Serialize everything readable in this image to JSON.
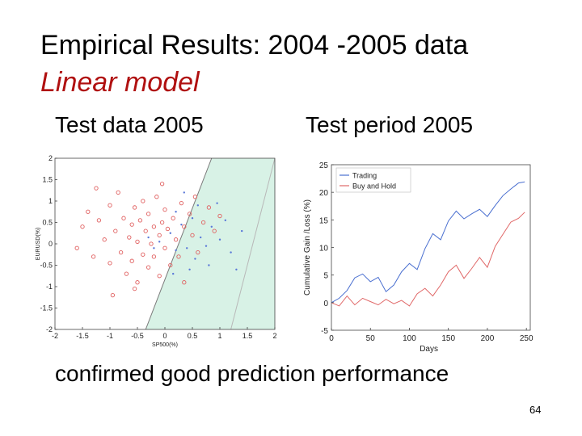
{
  "slide": {
    "title": "Empirical Results: 2004 -2005 data",
    "subtitle": "Linear model",
    "subtitle_color": "#b01010",
    "left_label": "Test data 2005",
    "right_label": "Test period 2005",
    "caption": "confirmed good prediction performance",
    "page_number": "64"
  },
  "chart_data": [
    {
      "type": "scatter",
      "title": "",
      "xlabel": "SP500(%)",
      "ylabel": "EURUSD(%)",
      "xlim": [
        -2,
        2
      ],
      "ylim": [
        -2,
        2
      ],
      "xticks": [
        -2,
        -1.5,
        -1,
        -0.5,
        0,
        0.5,
        1,
        1.5,
        2
      ],
      "yticks": [
        -2,
        -1.5,
        -1,
        -0.5,
        0,
        0.5,
        1,
        1.5,
        2
      ],
      "region_color": "#d8f2e6",
      "region_polygon": [
        [
          -0.35,
          -2
        ],
        [
          0.85,
          2
        ],
        [
          2,
          2
        ],
        [
          2,
          -2
        ]
      ],
      "boundary_lines": [
        {
          "points": [
            [
              -0.35,
              -2
            ],
            [
              0.85,
              2
            ]
          ],
          "color": "#7a7a7a"
        },
        {
          "points": [
            [
              1.2,
              -2
            ],
            [
              2,
              2
            ]
          ],
          "color": "#b8b8b8"
        }
      ],
      "series": [
        {
          "color": "#e06060",
          "marker": "circle",
          "points": [
            [
              -1.5,
              0.4
            ],
            [
              -1.4,
              0.75
            ],
            [
              -1.3,
              -0.3
            ],
            [
              -1.2,
              0.55
            ],
            [
              -1.1,
              0.1
            ],
            [
              -1.0,
              0.9
            ],
            [
              -1.0,
              -0.45
            ],
            [
              -0.9,
              0.3
            ],
            [
              -0.85,
              1.2
            ],
            [
              -0.8,
              -0.2
            ],
            [
              -0.75,
              0.6
            ],
            [
              -0.7,
              -0.7
            ],
            [
              -0.65,
              0.15
            ],
            [
              -0.6,
              0.45
            ],
            [
              -0.6,
              -0.4
            ],
            [
              -0.55,
              0.85
            ],
            [
              -0.5,
              0.05
            ],
            [
              -0.5,
              -0.9
            ],
            [
              -0.45,
              0.55
            ],
            [
              -0.4,
              -0.25
            ],
            [
              -0.4,
              1.0
            ],
            [
              -0.35,
              0.3
            ],
            [
              -0.3,
              -0.55
            ],
            [
              -0.3,
              0.7
            ],
            [
              -0.25,
              0.0
            ],
            [
              -0.2,
              0.4
            ],
            [
              -0.2,
              -0.3
            ],
            [
              -0.15,
              1.1
            ],
            [
              -0.1,
              0.2
            ],
            [
              -0.1,
              -0.75
            ],
            [
              -0.05,
              0.5
            ],
            [
              0.0,
              -0.1
            ],
            [
              0.0,
              0.8
            ],
            [
              0.05,
              0.35
            ],
            [
              0.1,
              -0.5
            ],
            [
              0.15,
              0.6
            ],
            [
              0.2,
              0.1
            ],
            [
              0.25,
              -0.3
            ],
            [
              0.3,
              0.95
            ],
            [
              0.35,
              0.4
            ],
            [
              0.45,
              0.7
            ],
            [
              0.5,
              0.2
            ],
            [
              0.55,
              1.1
            ],
            [
              0.6,
              -0.2
            ],
            [
              0.7,
              0.5
            ],
            [
              0.8,
              0.85
            ],
            [
              0.9,
              0.3
            ],
            [
              -1.25,
              1.3
            ],
            [
              -0.95,
              -1.2
            ],
            [
              -0.55,
              -1.05
            ],
            [
              0.35,
              -0.9
            ],
            [
              1.0,
              0.65
            ],
            [
              -1.6,
              -0.1
            ],
            [
              -0.05,
              1.4
            ]
          ]
        },
        {
          "color": "#5a78d8",
          "marker": "dot",
          "points": [
            [
              0.1,
              0.25
            ],
            [
              0.2,
              -0.15
            ],
            [
              0.3,
              0.45
            ],
            [
              0.4,
              -0.1
            ],
            [
              0.5,
              0.6
            ],
            [
              0.55,
              -0.35
            ],
            [
              0.65,
              0.15
            ],
            [
              0.75,
              -0.05
            ],
            [
              0.85,
              0.4
            ],
            [
              1.0,
              0.1
            ],
            [
              1.1,
              0.55
            ],
            [
              0.6,
              0.9
            ],
            [
              0.2,
              0.75
            ],
            [
              -0.1,
              0.05
            ],
            [
              -0.3,
              0.15
            ],
            [
              0.45,
              -0.6
            ],
            [
              0.8,
              -0.5
            ],
            [
              1.2,
              -0.2
            ],
            [
              0.95,
              0.95
            ],
            [
              0.35,
              1.2
            ],
            [
              -0.2,
              -0.1
            ],
            [
              0.15,
              -0.7
            ],
            [
              1.4,
              0.3
            ],
            [
              1.3,
              -0.6
            ]
          ]
        }
      ]
    },
    {
      "type": "line",
      "title": "",
      "xlabel": "Days",
      "ylabel": "Cumulative Gain /Loss (%)",
      "xlim": [
        0,
        255
      ],
      "ylim": [
        -5,
        25
      ],
      "xticks": [
        0,
        50,
        100,
        150,
        200,
        250
      ],
      "yticks": [
        -5,
        0,
        5,
        10,
        15,
        20,
        25
      ],
      "legend_position": "top-left",
      "series": [
        {
          "name": "Trading",
          "color": "#4a6fd0",
          "points": [
            [
              0,
              0
            ],
            [
              10,
              0.8
            ],
            [
              20,
              2.2
            ],
            [
              30,
              4.5
            ],
            [
              40,
              5.2
            ],
            [
              50,
              3.8
            ],
            [
              60,
              4.6
            ],
            [
              70,
              2.0
            ],
            [
              80,
              3.2
            ],
            [
              90,
              5.6
            ],
            [
              100,
              7.1
            ],
            [
              110,
              6.0
            ],
            [
              120,
              9.8
            ],
            [
              130,
              12.5
            ],
            [
              140,
              11.4
            ],
            [
              150,
              14.8
            ],
            [
              160,
              16.6
            ],
            [
              170,
              15.2
            ],
            [
              180,
              16.1
            ],
            [
              190,
              16.9
            ],
            [
              200,
              15.6
            ],
            [
              210,
              17.6
            ],
            [
              220,
              19.4
            ],
            [
              230,
              20.6
            ],
            [
              240,
              21.7
            ],
            [
              248,
              21.9
            ]
          ]
        },
        {
          "name": "Buy and Hold",
          "color": "#e06868",
          "points": [
            [
              0,
              0
            ],
            [
              10,
              -0.6
            ],
            [
              20,
              1.2
            ],
            [
              30,
              -0.4
            ],
            [
              40,
              0.8
            ],
            [
              50,
              0.2
            ],
            [
              60,
              -0.4
            ],
            [
              70,
              0.6
            ],
            [
              80,
              -0.2
            ],
            [
              90,
              0.4
            ],
            [
              100,
              -0.6
            ],
            [
              110,
              1.6
            ],
            [
              120,
              2.6
            ],
            [
              130,
              1.2
            ],
            [
              140,
              3.2
            ],
            [
              150,
              5.6
            ],
            [
              160,
              6.8
            ],
            [
              170,
              4.4
            ],
            [
              180,
              6.2
            ],
            [
              190,
              8.2
            ],
            [
              200,
              6.4
            ],
            [
              210,
              10.2
            ],
            [
              220,
              12.4
            ],
            [
              230,
              14.6
            ],
            [
              240,
              15.3
            ],
            [
              248,
              16.4
            ]
          ]
        }
      ]
    }
  ]
}
